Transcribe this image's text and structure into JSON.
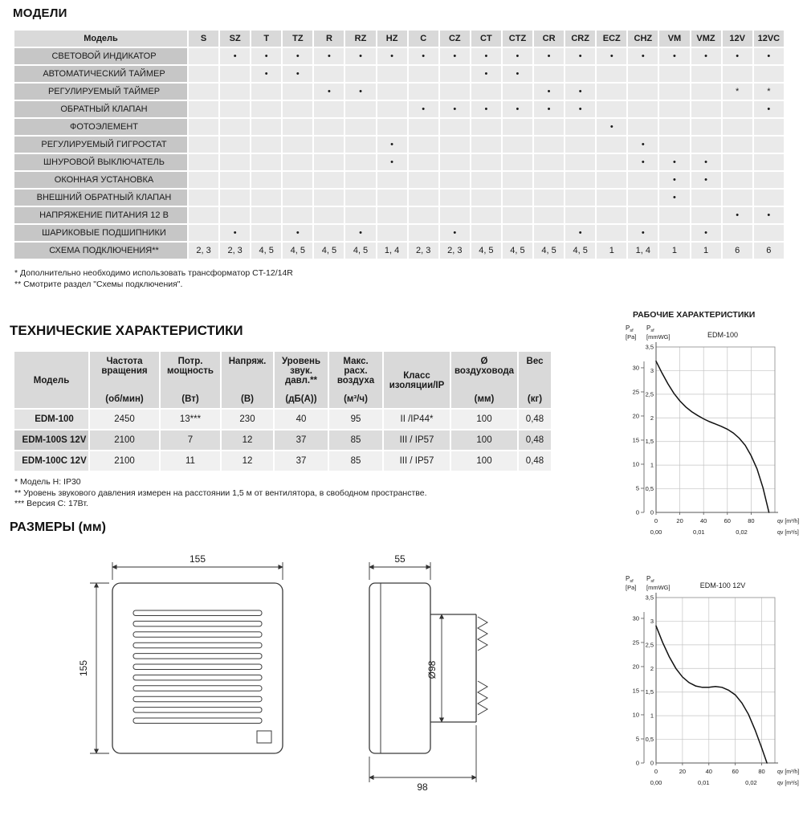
{
  "sections": {
    "models": "МОДЕЛИ",
    "specs": "ТЕХНИЧЕСКИЕ ХАРАКТЕРИСТИКИ",
    "dimensions": "РАЗМЕРЫ (мм)"
  },
  "charts": {
    "section_title": "РАБОЧИЕ ХАРАКТЕРИСТИКИ"
  },
  "colors": {
    "header-bg": "#d9d9d9",
    "label-bg": "#c6c6c6",
    "cell-bg": "#eaeaea",
    "row-light": "#f0f0f0",
    "row-dark": "#dcdcdc",
    "model-light": "#e3e3e3",
    "model-dark": "#cbcbcb",
    "ink": "#1a1a1a",
    "line": "#3a3a3a",
    "grid": "#c4c4c4",
    "curve": "#111111"
  },
  "models_table": {
    "model_header": "Модель",
    "columns": [
      "S",
      "SZ",
      "T",
      "TZ",
      "R",
      "RZ",
      "HZ",
      "C",
      "CZ",
      "CT",
      "CTZ",
      "CR",
      "CRZ",
      "ECZ",
      "CHZ",
      "VM",
      "VMZ",
      "12V",
      "12VC"
    ],
    "rows": [
      {
        "label": "СВЕТОВОЙ ИНДИКАТОР",
        "cells": [
          "",
          "•",
          "•",
          "•",
          "•",
          "•",
          "•",
          "•",
          "•",
          "•",
          "•",
          "•",
          "•",
          "•",
          "•",
          "•",
          "•",
          "•",
          "•"
        ]
      },
      {
        "label": "АВТОМАТИЧЕСКИЙ ТАЙМЕР",
        "cells": [
          "",
          "",
          "•",
          "•",
          "",
          "",
          "",
          "",
          "",
          "•",
          "•",
          "",
          "",
          "",
          "",
          "",
          "",
          "",
          ""
        ]
      },
      {
        "label": "РЕГУЛИРУЕМЫЙ ТАЙМЕР",
        "cells": [
          "",
          "",
          "",
          "",
          "•",
          "•",
          "",
          "",
          "",
          "",
          "",
          "•",
          "•",
          "",
          "",
          "",
          "",
          "*",
          "*"
        ]
      },
      {
        "label": "ОБРАТНЫЙ КЛАПАН",
        "cells": [
          "",
          "",
          "",
          "",
          "",
          "",
          "",
          "•",
          "•",
          "•",
          "•",
          "•",
          "•",
          "",
          "",
          "",
          "",
          "",
          "•"
        ]
      },
      {
        "label": "ФОТОЭЛЕМЕНТ",
        "cells": [
          "",
          "",
          "",
          "",
          "",
          "",
          "",
          "",
          "",
          "",
          "",
          "",
          "",
          "•",
          "",
          "",
          "",
          "",
          ""
        ]
      },
      {
        "label": "РЕГУЛИРУЕМЫЙ ГИГРОСТАТ",
        "cells": [
          "",
          "",
          "",
          "",
          "",
          "",
          "•",
          "",
          "",
          "",
          "",
          "",
          "",
          "",
          "•",
          "",
          "",
          "",
          ""
        ]
      },
      {
        "label": "ШНУРОВОЙ ВЫКЛЮЧАТЕЛЬ",
        "cells": [
          "",
          "",
          "",
          "",
          "",
          "",
          "•",
          "",
          "",
          "",
          "",
          "",
          "",
          "",
          "•",
          "•",
          "•",
          "",
          ""
        ]
      },
      {
        "label": "ОКОННАЯ УСТАНОВКА",
        "cells": [
          "",
          "",
          "",
          "",
          "",
          "",
          "",
          "",
          "",
          "",
          "",
          "",
          "",
          "",
          "",
          "•",
          "•",
          "",
          ""
        ]
      },
      {
        "label": "ВНЕШНИЙ ОБРАТНЫЙ КЛАПАН",
        "cells": [
          "",
          "",
          "",
          "",
          "",
          "",
          "",
          "",
          "",
          "",
          "",
          "",
          "",
          "",
          "",
          "•",
          "",
          "",
          ""
        ]
      },
      {
        "label": "НАПРЯЖЕНИЕ ПИТАНИЯ 12 В",
        "cells": [
          "",
          "",
          "",
          "",
          "",
          "",
          "",
          "",
          "",
          "",
          "",
          "",
          "",
          "",
          "",
          "",
          "",
          "•",
          "•"
        ]
      },
      {
        "label": "ШАРИКОВЫЕ ПОДШИПНИКИ",
        "cells": [
          "",
          "•",
          "",
          "•",
          "",
          "•",
          "",
          "",
          "•",
          "",
          "",
          "",
          "•",
          "",
          "•",
          "",
          "•",
          "",
          ""
        ]
      },
      {
        "label": "СХЕМА ПОДКЛЮЧЕНИЯ**",
        "cells": [
          "2, 3",
          "2, 3",
          "4, 5",
          "4, 5",
          "4, 5",
          "4, 5",
          "1, 4",
          "2, 3",
          "2, 3",
          "4, 5",
          "4, 5",
          "4, 5",
          "4, 5",
          "1",
          "1, 4",
          "1",
          "1",
          "6",
          "6"
        ]
      }
    ],
    "footnotes": [
      "* Дополнительно необходимо использовать трансформатор CT-12/14R",
      "** Смотрите раздел \"Схемы подключения\"."
    ]
  },
  "specs_table": {
    "columns": [
      {
        "label": "Модель",
        "unit": ""
      },
      {
        "label": "Частота вращения",
        "unit": "(об/мин)"
      },
      {
        "label": "Потр. мощность",
        "unit": "(Вт)"
      },
      {
        "label": "Напряж.",
        "unit": "(В)"
      },
      {
        "label": "Уровень звук. давл.**",
        "unit": "(дБ(А))"
      },
      {
        "label": "Макс. расх. воздуха",
        "unit": "(м³/ч)"
      },
      {
        "label": "Класс изоляции/IP",
        "unit": ""
      },
      {
        "label": "Ø воздуховода",
        "unit": "(мм)"
      },
      {
        "label": "Вес",
        "unit": "(кг)"
      }
    ],
    "rows": [
      {
        "model": "EDM-100",
        "values": [
          "2450",
          "13***",
          "230",
          "40",
          "95",
          "II /IP44*",
          "100",
          "0,48"
        ]
      },
      {
        "model": "EDM-100S 12V",
        "values": [
          "2100",
          "7",
          "12",
          "37",
          "85",
          "III / IP57",
          "100",
          "0,48"
        ]
      },
      {
        "model": "EDM-100C 12V",
        "values": [
          "2100",
          "11",
          "12",
          "37",
          "85",
          "III / IP57",
          "100",
          "0,48"
        ]
      }
    ],
    "footnotes": [
      "* Модель H: IP30",
      "** Уровень звукового давления измерен на расстоянии 1,5 м от вентилятора, в свободном пространстве.",
      "*** Версия C: 17Вт."
    ]
  },
  "dimensions": {
    "front_width": "155",
    "front_height": "155",
    "side_front_depth": "55",
    "duct_diameter": "Ø98",
    "total_depth": "98"
  },
  "chart_data": [
    {
      "type": "line",
      "title": "EDM-100",
      "pa_axis": {
        "sym": "Psf",
        "unit": "[Pa]"
      },
      "mmwg_axis": {
        "sym": "Psf",
        "unit": "[mmWG]"
      },
      "x_unit_h": "qv [m³/h]",
      "x_unit_s": "qv [m³/s]",
      "pa_ticks": [
        0,
        5,
        10,
        15,
        20,
        25,
        30
      ],
      "mmwg_ticks": [
        0,
        0.5,
        1,
        1.5,
        2,
        2.5,
        3,
        3.5
      ],
      "x_ticks": [
        [
          0,
          "0"
        ],
        [
          20,
          "20"
        ],
        [
          40,
          "40"
        ],
        [
          60,
          "60"
        ],
        [
          80,
          "80"
        ]
      ],
      "xs_ticks": [
        [
          0,
          "0,00"
        ],
        [
          36,
          "0,01"
        ],
        [
          72,
          "0,02"
        ]
      ],
      "x_grid": [
        20,
        40,
        60,
        80
      ],
      "xmax": 100,
      "ymax_mmwg": 3.5,
      "points": [
        [
          0,
          3.2
        ],
        [
          5,
          2.95
        ],
        [
          10,
          2.72
        ],
        [
          15,
          2.52
        ],
        [
          20,
          2.36
        ],
        [
          25,
          2.23
        ],
        [
          30,
          2.13
        ],
        [
          35,
          2.05
        ],
        [
          40,
          1.98
        ],
        [
          45,
          1.92
        ],
        [
          50,
          1.87
        ],
        [
          55,
          1.82
        ],
        [
          60,
          1.76
        ],
        [
          65,
          1.68
        ],
        [
          70,
          1.57
        ],
        [
          75,
          1.42
        ],
        [
          80,
          1.2
        ],
        [
          85,
          0.92
        ],
        [
          90,
          0.52
        ],
        [
          95,
          0
        ]
      ]
    },
    {
      "type": "line",
      "title": "EDM-100 12V",
      "pa_axis": {
        "sym": "Psf",
        "unit": "[Pa]"
      },
      "mmwg_axis": {
        "sym": "Psf",
        "unit": "[mmWG]"
      },
      "x_unit_h": "qv [m³/h]",
      "x_unit_s": "qv [m³/s]",
      "pa_ticks": [
        0,
        5,
        10,
        15,
        20,
        25,
        30
      ],
      "mmwg_ticks": [
        0,
        0.5,
        1,
        1.5,
        2,
        2.5,
        3,
        3.5
      ],
      "x_ticks": [
        [
          0,
          "0"
        ],
        [
          20,
          "20"
        ],
        [
          40,
          "40"
        ],
        [
          60,
          "60"
        ],
        [
          80,
          "80"
        ]
      ],
      "xs_ticks": [
        [
          0,
          "0,00"
        ],
        [
          36,
          "0,01"
        ],
        [
          72,
          "0,02"
        ]
      ],
      "x_grid": [
        20,
        40,
        60,
        80
      ],
      "xmax": 90,
      "ymax_mmwg": 3.5,
      "points": [
        [
          0,
          2.9
        ],
        [
          5,
          2.55
        ],
        [
          10,
          2.25
        ],
        [
          15,
          2.0
        ],
        [
          20,
          1.82
        ],
        [
          25,
          1.7
        ],
        [
          30,
          1.63
        ],
        [
          35,
          1.6
        ],
        [
          40,
          1.6
        ],
        [
          45,
          1.62
        ],
        [
          50,
          1.6
        ],
        [
          55,
          1.54
        ],
        [
          60,
          1.44
        ],
        [
          65,
          1.27
        ],
        [
          70,
          1.03
        ],
        [
          75,
          0.7
        ],
        [
          80,
          0.32
        ],
        [
          84,
          0
        ]
      ]
    }
  ]
}
